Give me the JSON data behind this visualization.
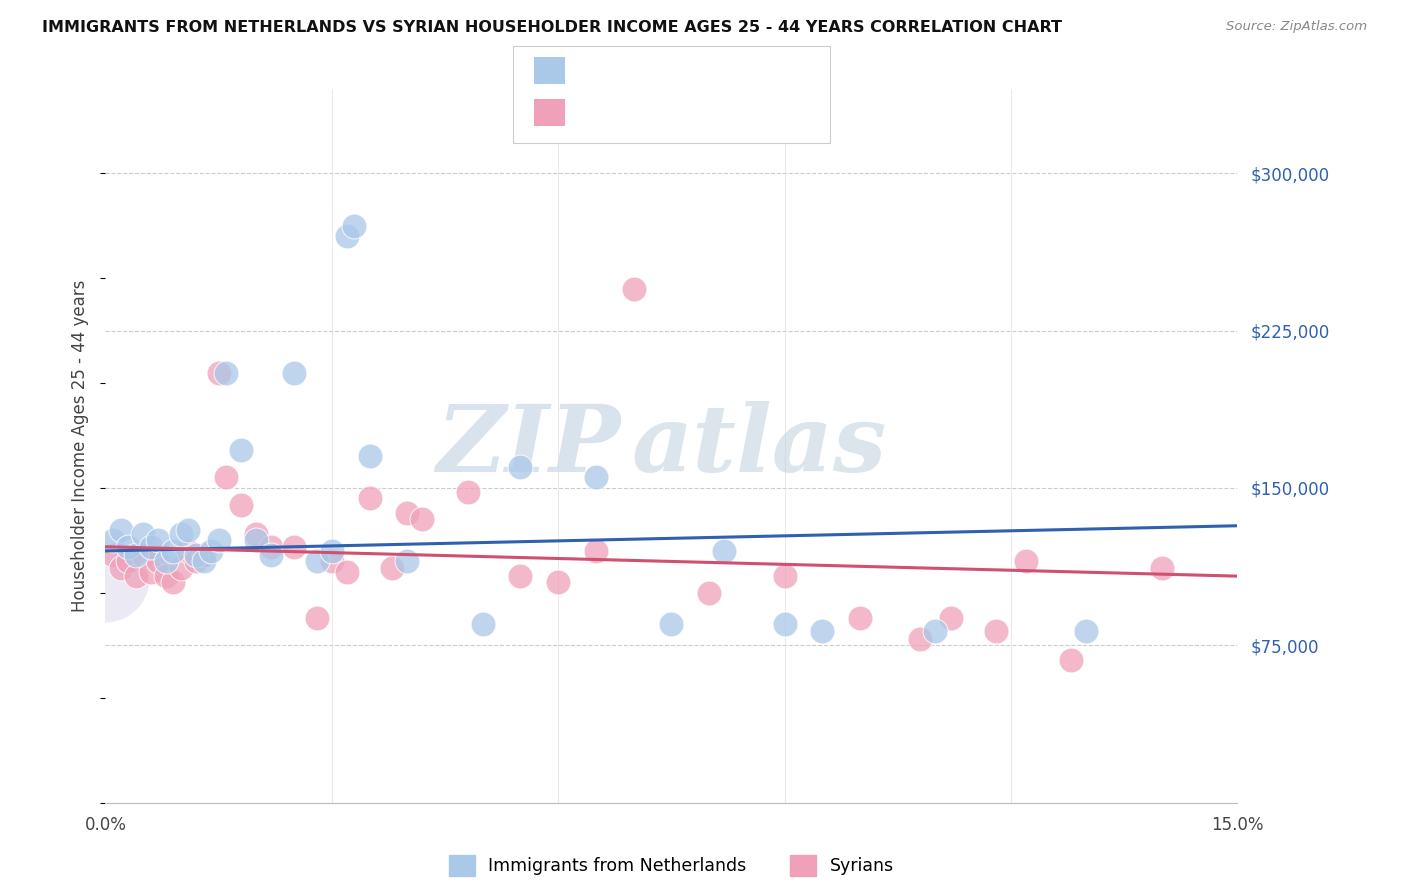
{
  "title": "IMMIGRANTS FROM NETHERLANDS VS SYRIAN HOUSEHOLDER INCOME AGES 25 - 44 YEARS CORRELATION CHART",
  "source": "Source: ZipAtlas.com",
  "ylabel": "Householder Income Ages 25 - 44 years",
  "yticks": [
    75000,
    150000,
    225000,
    300000
  ],
  "ytick_labels": [
    "$75,000",
    "$150,000",
    "$225,000",
    "$300,000"
  ],
  "xmin": 0.0,
  "xmax": 0.15,
  "ymin": 0,
  "ymax": 340000,
  "blue_color": "#aac8e8",
  "pink_color": "#f0a0b8",
  "blue_line_color": "#3060b0",
  "pink_line_color": "#d05070",
  "watermark_zip": "ZIP",
  "watermark_atlas": "atlas",
  "nl_x": [
    0.001,
    0.002,
    0.003,
    0.004,
    0.005,
    0.006,
    0.007,
    0.008,
    0.009,
    0.01,
    0.011,
    0.012,
    0.013,
    0.014,
    0.015,
    0.016,
    0.018,
    0.02,
    0.022,
    0.025,
    0.028,
    0.03,
    0.032,
    0.033,
    0.035,
    0.04,
    0.05,
    0.055,
    0.065,
    0.075,
    0.082,
    0.09,
    0.095,
    0.11,
    0.13
  ],
  "nl_y": [
    125000,
    130000,
    122000,
    118000,
    128000,
    122000,
    125000,
    115000,
    120000,
    128000,
    130000,
    118000,
    115000,
    120000,
    125000,
    205000,
    168000,
    125000,
    118000,
    205000,
    115000,
    120000,
    270000,
    275000,
    165000,
    115000,
    85000,
    160000,
    155000,
    85000,
    120000,
    85000,
    82000,
    82000,
    82000
  ],
  "sy_x": [
    0.001,
    0.002,
    0.003,
    0.004,
    0.005,
    0.006,
    0.007,
    0.008,
    0.009,
    0.01,
    0.011,
    0.012,
    0.013,
    0.015,
    0.016,
    0.018,
    0.02,
    0.022,
    0.025,
    0.028,
    0.03,
    0.032,
    0.035,
    0.038,
    0.04,
    0.042,
    0.048,
    0.055,
    0.06,
    0.065,
    0.07,
    0.08,
    0.09,
    0.1,
    0.108,
    0.112,
    0.118,
    0.122,
    0.128,
    0.14
  ],
  "sy_y": [
    118000,
    112000,
    115000,
    108000,
    118000,
    110000,
    115000,
    108000,
    105000,
    112000,
    120000,
    115000,
    118000,
    205000,
    155000,
    142000,
    128000,
    122000,
    122000,
    88000,
    115000,
    110000,
    145000,
    112000,
    138000,
    135000,
    148000,
    108000,
    105000,
    120000,
    245000,
    100000,
    108000,
    88000,
    78000,
    88000,
    82000,
    115000,
    68000,
    112000
  ],
  "nl_trend_x0": 0.0,
  "nl_trend_y0": 120000,
  "nl_trend_x1": 0.15,
  "nl_trend_y1": 132000,
  "sy_trend_x0": 0.0,
  "sy_trend_y0": 122000,
  "sy_trend_x1": 0.15,
  "sy_trend_y1": 108000
}
